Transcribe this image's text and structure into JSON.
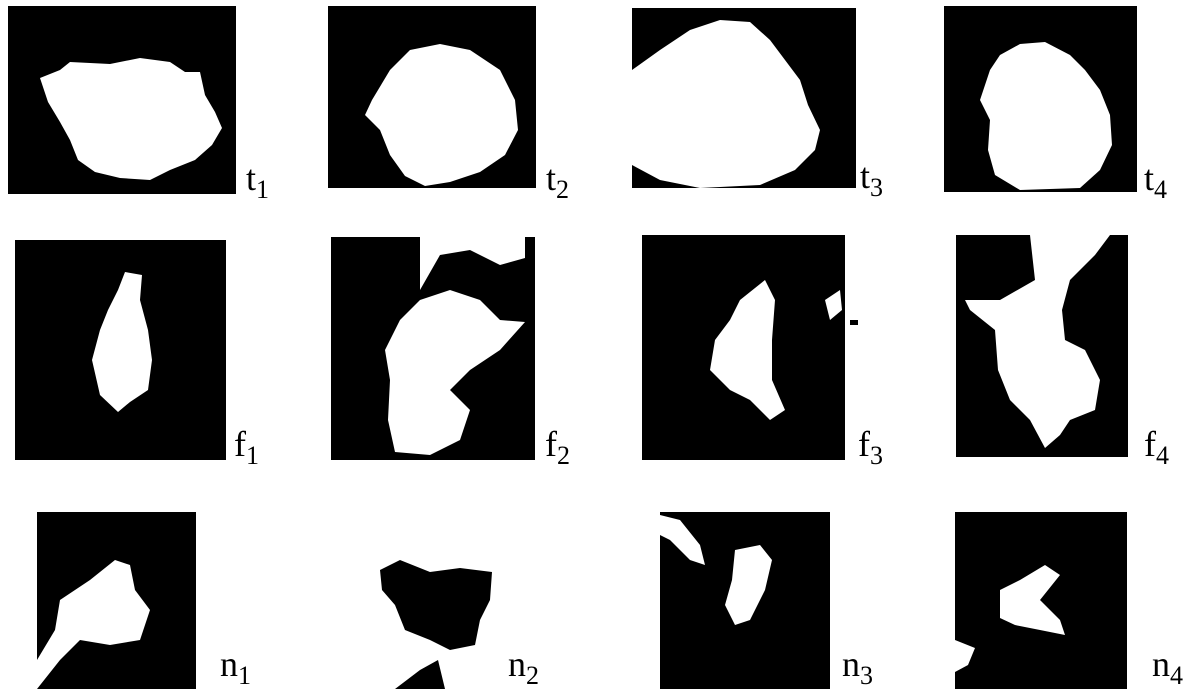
{
  "panels": [
    {
      "letter": "t",
      "sub": "1"
    },
    {
      "letter": "t",
      "sub": "2"
    },
    {
      "letter": "t",
      "sub": "3"
    },
    {
      "letter": "t",
      "sub": "4"
    },
    {
      "letter": "f",
      "sub": "1"
    },
    {
      "letter": "f",
      "sub": "2"
    },
    {
      "letter": "f",
      "sub": "3"
    },
    {
      "letter": "f",
      "sub": "4"
    },
    {
      "letter": "n",
      "sub": "1"
    },
    {
      "letter": "n",
      "sub": "2"
    },
    {
      "letter": "n",
      "sub": "3"
    },
    {
      "letter": "n",
      "sub": "4"
    }
  ]
}
